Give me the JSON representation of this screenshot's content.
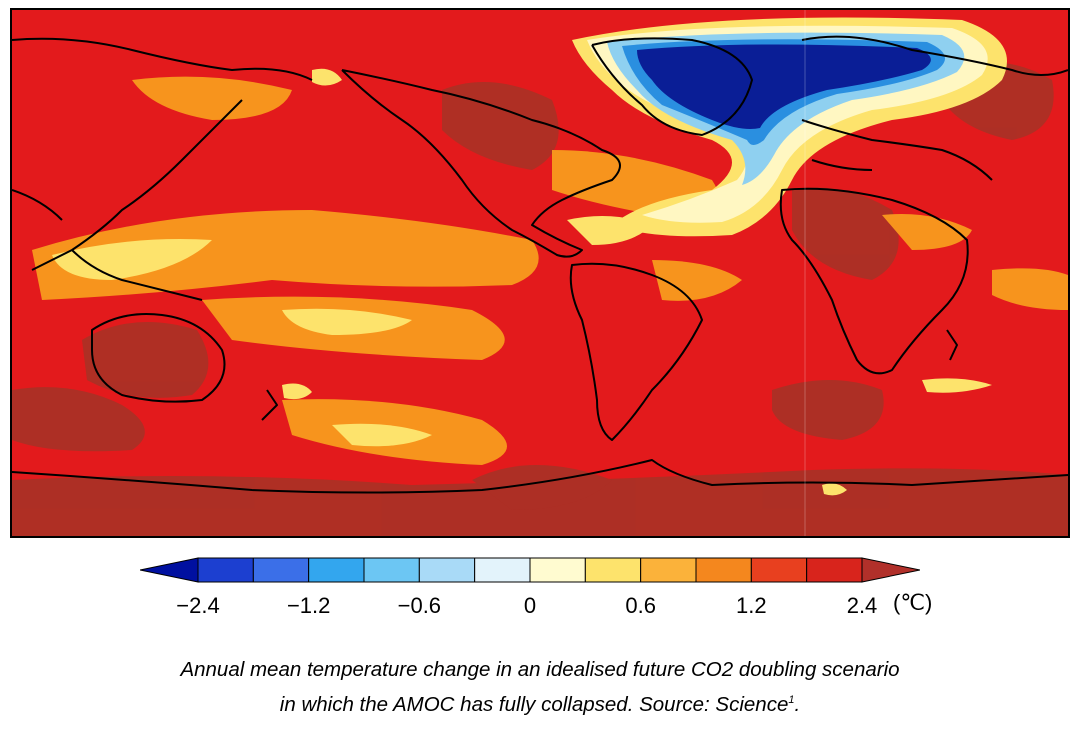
{
  "map": {
    "projection": "equirectangular world, Pacific-centered on left, Atlantic right",
    "variable": "temperature-change",
    "colors": {
      "dark_red": "#a83226",
      "red": "#e31a1c",
      "orange_red": "#f04a1a",
      "orange": "#f7941d",
      "light_orange": "#fbb03b",
      "yellow": "#fde36c",
      "pale_yellow": "#fff7c2",
      "pale_blue": "#d6f0fb",
      "light_blue": "#8fd0f0",
      "mid_blue": "#2a8fe0",
      "blue": "#1550c8",
      "dark_blue": "#0a1e96",
      "coast": "#000000"
    }
  },
  "colorbar": {
    "bins": [
      "#0010a0",
      "#1c3fd0",
      "#3b6fe8",
      "#33a6ee",
      "#6cc6f3",
      "#a9daf7",
      "#e3f3fb",
      "#fffbd0",
      "#fde36c",
      "#fbb23a",
      "#f4871e",
      "#e8401f",
      "#d8241c",
      "#b1302a"
    ],
    "ticks": [
      {
        "label": "−2.4",
        "value": -2.4
      },
      {
        "label": "−1.2",
        "value": -1.2
      },
      {
        "label": "−0.6",
        "value": -0.6
      },
      {
        "label": "0",
        "value": 0
      },
      {
        "label": "0.6",
        "value": 0.6
      },
      {
        "label": "1.2",
        "value": 1.2
      },
      {
        "label": "2.4",
        "value": 2.4
      }
    ],
    "unit": "(℃)"
  },
  "caption": {
    "line1": "Annual mean temperature change in an idealised future CO2 doubling scenario",
    "line2": "in which the AMOC has fully collapsed. Source: Science",
    "footnote": "1",
    "end": "."
  }
}
